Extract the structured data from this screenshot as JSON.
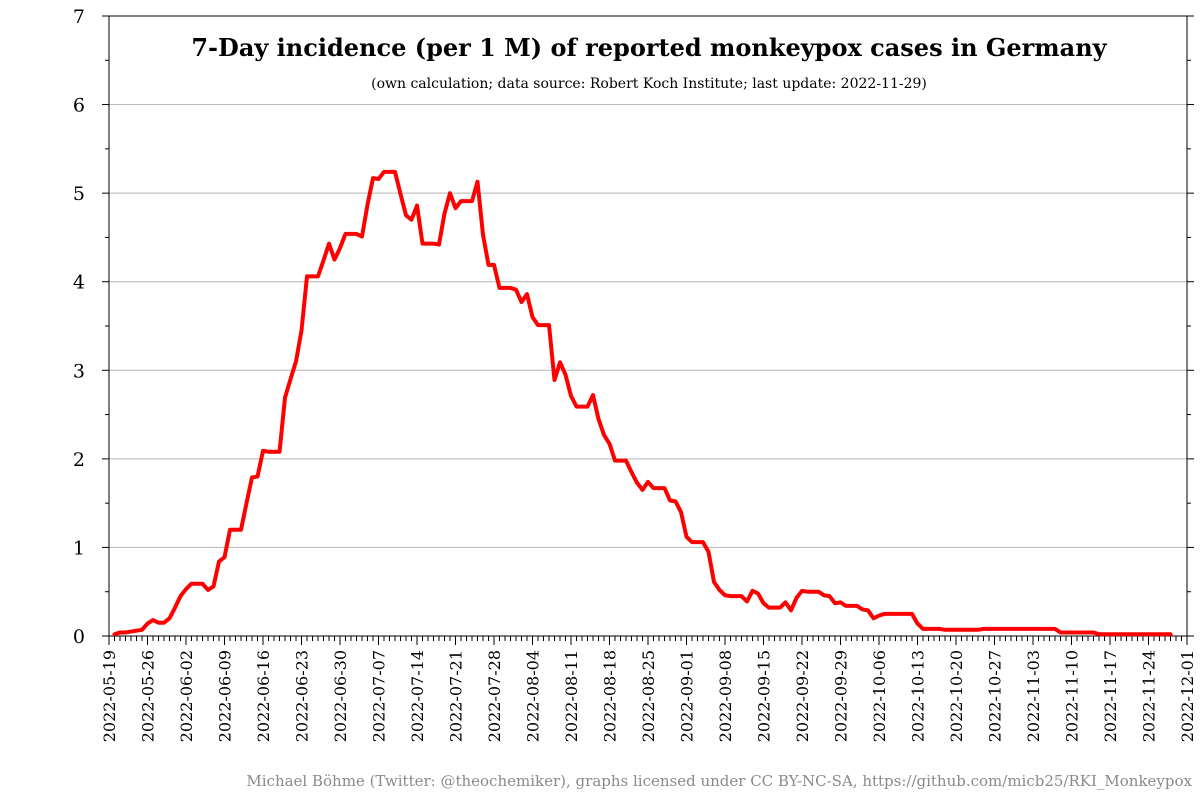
{
  "chart_data": {
    "type": "line",
    "title": "7-Day incidence (per 1 M) of reported monkeypox cases in Germany",
    "subtitle": "(own calculation; data source: Robert Koch Institute; last update: 2022-11-29)",
    "credit": "Michael Böhme (Twitter: @theochemiker), graphs licensed under CC BY-NC-SA, https://github.com/micb25/RKI_Monkeypox",
    "xlabel": "",
    "ylabel": "",
    "ylim": [
      0,
      7
    ],
    "y_ticks": [
      "0",
      "1",
      "2",
      "3",
      "4",
      "5",
      "6",
      "7"
    ],
    "x_range": [
      "2022-05-19",
      "2022-12-01"
    ],
    "x_tick_labels": [
      "2022-05-19",
      "2022-05-26",
      "2022-06-02",
      "2022-06-09",
      "2022-06-16",
      "2022-06-23",
      "2022-06-30",
      "2022-07-07",
      "2022-07-14",
      "2022-07-21",
      "2022-07-28",
      "2022-08-04",
      "2022-08-11",
      "2022-08-18",
      "2022-08-25",
      "2022-09-01",
      "2022-09-08",
      "2022-09-15",
      "2022-09-22",
      "2022-09-29",
      "2022-10-06",
      "2022-10-13",
      "2022-10-20",
      "2022-10-27",
      "2022-11-03",
      "2022-11-10",
      "2022-11-17",
      "2022-11-24",
      "2022-12-01"
    ],
    "grid": "horizontal",
    "legend": "none",
    "series": [
      {
        "color": "#ff0000",
        "points": [
          [
            "2022-05-20",
            0.02
          ],
          [
            "2022-05-21",
            0.04
          ],
          [
            "2022-05-22",
            0.04
          ],
          [
            "2022-05-23",
            0.05
          ],
          [
            "2022-05-24",
            0.06
          ],
          [
            "2022-05-25",
            0.07
          ],
          [
            "2022-05-26",
            0.14
          ],
          [
            "2022-05-27",
            0.18
          ],
          [
            "2022-05-28",
            0.15
          ],
          [
            "2022-05-29",
            0.15
          ],
          [
            "2022-05-30",
            0.2
          ],
          [
            "2022-05-31",
            0.32
          ],
          [
            "2022-06-01",
            0.45
          ],
          [
            "2022-06-02",
            0.53
          ],
          [
            "2022-06-03",
            0.59
          ],
          [
            "2022-06-04",
            0.59
          ],
          [
            "2022-06-05",
            0.59
          ],
          [
            "2022-06-06",
            0.52
          ],
          [
            "2022-06-07",
            0.56
          ],
          [
            "2022-06-08",
            0.84
          ],
          [
            "2022-06-09",
            0.89
          ],
          [
            "2022-06-10",
            1.2
          ],
          [
            "2022-06-11",
            1.2
          ],
          [
            "2022-06-12",
            1.2
          ],
          [
            "2022-06-13",
            1.5
          ],
          [
            "2022-06-14",
            1.79
          ],
          [
            "2022-06-15",
            1.8
          ],
          [
            "2022-06-16",
            2.09
          ],
          [
            "2022-06-17",
            2.08
          ],
          [
            "2022-06-18",
            2.08
          ],
          [
            "2022-06-19",
            2.08
          ],
          [
            "2022-06-20",
            2.69
          ],
          [
            "2022-06-21",
            2.9
          ],
          [
            "2022-06-22",
            3.1
          ],
          [
            "2022-06-23",
            3.45
          ],
          [
            "2022-06-24",
            4.06
          ],
          [
            "2022-06-25",
            4.06
          ],
          [
            "2022-06-26",
            4.06
          ],
          [
            "2022-06-27",
            4.24
          ],
          [
            "2022-06-28",
            4.43
          ],
          [
            "2022-06-29",
            4.25
          ],
          [
            "2022-06-30",
            4.38
          ],
          [
            "2022-07-01",
            4.54
          ],
          [
            "2022-07-02",
            4.54
          ],
          [
            "2022-07-03",
            4.54
          ],
          [
            "2022-07-04",
            4.51
          ],
          [
            "2022-07-05",
            4.87
          ],
          [
            "2022-07-06",
            5.17
          ],
          [
            "2022-07-07",
            5.16
          ],
          [
            "2022-07-08",
            5.24
          ],
          [
            "2022-07-09",
            5.24
          ],
          [
            "2022-07-10",
            5.24
          ],
          [
            "2022-07-11",
            4.99
          ],
          [
            "2022-07-12",
            4.75
          ],
          [
            "2022-07-13",
            4.7
          ],
          [
            "2022-07-14",
            4.86
          ],
          [
            "2022-07-15",
            4.43
          ],
          [
            "2022-07-16",
            4.43
          ],
          [
            "2022-07-17",
            4.43
          ],
          [
            "2022-07-18",
            4.42
          ],
          [
            "2022-07-19",
            4.77
          ],
          [
            "2022-07-20",
            5.0
          ],
          [
            "2022-07-21",
            4.83
          ],
          [
            "2022-07-22",
            4.91
          ],
          [
            "2022-07-23",
            4.91
          ],
          [
            "2022-07-24",
            4.91
          ],
          [
            "2022-07-25",
            5.13
          ],
          [
            "2022-07-26",
            4.53
          ],
          [
            "2022-07-27",
            4.19
          ],
          [
            "2022-07-28",
            4.19
          ],
          [
            "2022-07-29",
            3.93
          ],
          [
            "2022-07-30",
            3.93
          ],
          [
            "2022-07-31",
            3.93
          ],
          [
            "2022-08-01",
            3.91
          ],
          [
            "2022-08-02",
            3.77
          ],
          [
            "2022-08-03",
            3.86
          ],
          [
            "2022-08-04",
            3.6
          ],
          [
            "2022-08-05",
            3.51
          ],
          [
            "2022-08-06",
            3.51
          ],
          [
            "2022-08-07",
            3.51
          ],
          [
            "2022-08-08",
            2.89
          ],
          [
            "2022-08-09",
            3.09
          ],
          [
            "2022-08-10",
            2.95
          ],
          [
            "2022-08-11",
            2.71
          ],
          [
            "2022-08-12",
            2.59
          ],
          [
            "2022-08-13",
            2.59
          ],
          [
            "2022-08-14",
            2.59
          ],
          [
            "2022-08-15",
            2.72
          ],
          [
            "2022-08-16",
            2.45
          ],
          [
            "2022-08-17",
            2.27
          ],
          [
            "2022-08-18",
            2.17
          ],
          [
            "2022-08-19",
            1.98
          ],
          [
            "2022-08-20",
            1.98
          ],
          [
            "2022-08-21",
            1.98
          ],
          [
            "2022-08-22",
            1.85
          ],
          [
            "2022-08-23",
            1.73
          ],
          [
            "2022-08-24",
            1.65
          ],
          [
            "2022-08-25",
            1.74
          ],
          [
            "2022-08-26",
            1.67
          ],
          [
            "2022-08-27",
            1.67
          ],
          [
            "2022-08-28",
            1.67
          ],
          [
            "2022-08-29",
            1.53
          ],
          [
            "2022-08-30",
            1.52
          ],
          [
            "2022-08-31",
            1.4
          ],
          [
            "2022-09-01",
            1.12
          ],
          [
            "2022-09-02",
            1.06
          ],
          [
            "2022-09-03",
            1.06
          ],
          [
            "2022-09-04",
            1.06
          ],
          [
            "2022-09-05",
            0.95
          ],
          [
            "2022-09-06",
            0.61
          ],
          [
            "2022-09-07",
            0.52
          ],
          [
            "2022-09-08",
            0.46
          ],
          [
            "2022-09-09",
            0.45
          ],
          [
            "2022-09-10",
            0.45
          ],
          [
            "2022-09-11",
            0.45
          ],
          [
            "2022-09-12",
            0.39
          ],
          [
            "2022-09-13",
            0.51
          ],
          [
            "2022-09-14",
            0.48
          ],
          [
            "2022-09-15",
            0.37
          ],
          [
            "2022-09-16",
            0.32
          ],
          [
            "2022-09-17",
            0.32
          ],
          [
            "2022-09-18",
            0.32
          ],
          [
            "2022-09-19",
            0.38
          ],
          [
            "2022-09-20",
            0.29
          ],
          [
            "2022-09-21",
            0.43
          ],
          [
            "2022-09-22",
            0.51
          ],
          [
            "2022-09-23",
            0.5
          ],
          [
            "2022-09-24",
            0.5
          ],
          [
            "2022-09-25",
            0.5
          ],
          [
            "2022-09-26",
            0.46
          ],
          [
            "2022-09-27",
            0.45
          ],
          [
            "2022-09-28",
            0.37
          ],
          [
            "2022-09-29",
            0.38
          ],
          [
            "2022-09-30",
            0.34
          ],
          [
            "2022-10-01",
            0.34
          ],
          [
            "2022-10-02",
            0.34
          ],
          [
            "2022-10-03",
            0.3
          ],
          [
            "2022-10-04",
            0.29
          ],
          [
            "2022-10-05",
            0.2
          ],
          [
            "2022-10-06",
            0.23
          ],
          [
            "2022-10-07",
            0.25
          ],
          [
            "2022-10-08",
            0.25
          ],
          [
            "2022-10-09",
            0.25
          ],
          [
            "2022-10-10",
            0.25
          ],
          [
            "2022-10-11",
            0.25
          ],
          [
            "2022-10-12",
            0.25
          ],
          [
            "2022-10-13",
            0.14
          ],
          [
            "2022-10-14",
            0.08
          ],
          [
            "2022-10-15",
            0.08
          ],
          [
            "2022-10-16",
            0.08
          ],
          [
            "2022-10-17",
            0.08
          ],
          [
            "2022-10-18",
            0.07
          ],
          [
            "2022-10-19",
            0.07
          ],
          [
            "2022-10-20",
            0.07
          ],
          [
            "2022-10-21",
            0.07
          ],
          [
            "2022-10-22",
            0.07
          ],
          [
            "2022-10-23",
            0.07
          ],
          [
            "2022-10-24",
            0.07
          ],
          [
            "2022-10-25",
            0.08
          ],
          [
            "2022-10-26",
            0.08
          ],
          [
            "2022-10-27",
            0.08
          ],
          [
            "2022-10-28",
            0.08
          ],
          [
            "2022-10-29",
            0.08
          ],
          [
            "2022-10-30",
            0.08
          ],
          [
            "2022-10-31",
            0.08
          ],
          [
            "2022-11-01",
            0.08
          ],
          [
            "2022-11-02",
            0.08
          ],
          [
            "2022-11-03",
            0.08
          ],
          [
            "2022-11-04",
            0.08
          ],
          [
            "2022-11-05",
            0.08
          ],
          [
            "2022-11-06",
            0.08
          ],
          [
            "2022-11-07",
            0.08
          ],
          [
            "2022-11-08",
            0.04
          ],
          [
            "2022-11-09",
            0.04
          ],
          [
            "2022-11-10",
            0.04
          ],
          [
            "2022-11-11",
            0.04
          ],
          [
            "2022-11-12",
            0.04
          ],
          [
            "2022-11-13",
            0.04
          ],
          [
            "2022-11-14",
            0.04
          ],
          [
            "2022-11-15",
            0.02
          ],
          [
            "2022-11-16",
            0.02
          ],
          [
            "2022-11-17",
            0.02
          ],
          [
            "2022-11-18",
            0.02
          ],
          [
            "2022-11-19",
            0.02
          ],
          [
            "2022-11-20",
            0.02
          ],
          [
            "2022-11-21",
            0.02
          ],
          [
            "2022-11-22",
            0.02
          ],
          [
            "2022-11-23",
            0.02
          ],
          [
            "2022-11-24",
            0.02
          ],
          [
            "2022-11-25",
            0.02
          ],
          [
            "2022-11-26",
            0.02
          ],
          [
            "2022-11-27",
            0.02
          ],
          [
            "2022-11-28",
            0.02
          ]
        ]
      }
    ]
  }
}
